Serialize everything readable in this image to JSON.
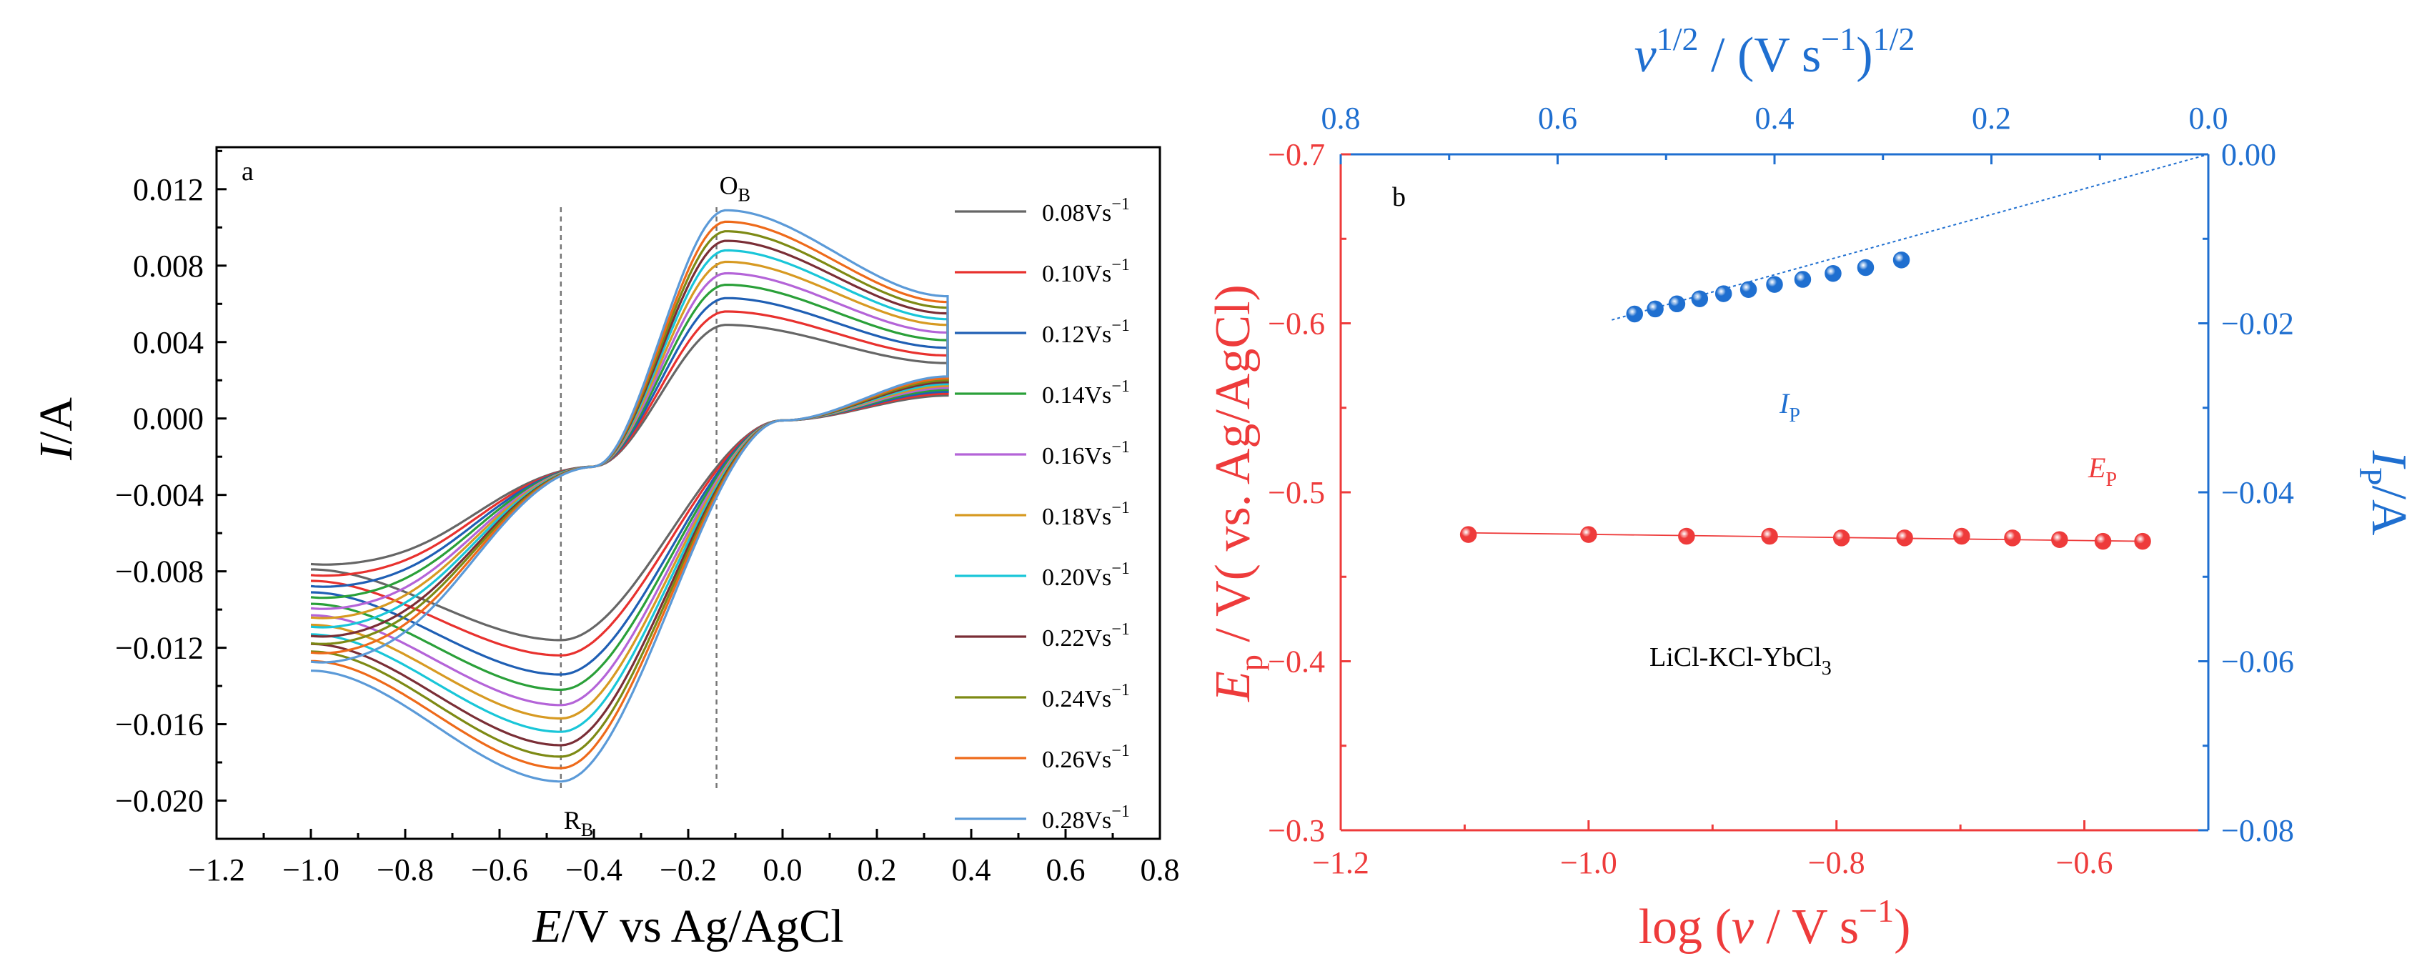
{
  "chart_data": [
    {
      "type": "line",
      "panel_label": "a",
      "xlabel_italic": "E",
      "xlabel_rest": "/V vs Ag/AgCl",
      "ylabel_italic": "I",
      "ylabel_rest": "/A",
      "xlim": [
        -1.2,
        0.8
      ],
      "ylim": [
        -0.022,
        0.0142
      ],
      "x_ticks": [
        -1.2,
        -1.0,
        -0.8,
        -0.6,
        -0.4,
        -0.2,
        0.0,
        0.2,
        0.4,
        0.6,
        0.8
      ],
      "x_tick_labels": [
        "−1.2",
        "−1.0",
        "−0.8",
        "−0.6",
        "−0.4",
        "−0.2",
        "0.0",
        "0.2",
        "0.4",
        "0.6",
        "0.8"
      ],
      "y_ticks": [
        0.012,
        0.008,
        0.004,
        0.0,
        -0.004,
        -0.008,
        -0.012,
        -0.016,
        -0.02
      ],
      "y_tick_labels": [
        "0.012",
        "0.008",
        "0.004",
        "0.000",
        "−0.004",
        "−0.008",
        "−0.012",
        "−0.016",
        "−0.020"
      ],
      "vlines": [
        -0.47,
        -0.14
      ],
      "annotations": [
        {
          "main": "O",
          "sub": "B",
          "x": -0.14,
          "y": 0.0125
        },
        {
          "main": "R",
          "sub": "B",
          "x": -0.47,
          "y": -0.0205
        }
      ],
      "cv_shape": {
        "e_start": -1.0,
        "e_switch": 0.35,
        "e_oxidation_peak": -0.12,
        "e_reduction_peak": -0.47,
        "e_crossover": -0.4
      },
      "series": [
        {
          "name": "0.08",
          "color": "#666666",
          "i_ox_peak": 0.0049,
          "i_red_peak": -0.0116,
          "i_start": -0.0079,
          "i_switch_upper": 0.0029,
          "i_switch_lower": 0.0012
        },
        {
          "name": "0.10",
          "color": "#e8312e",
          "i_ox_peak": 0.0056,
          "i_red_peak": -0.0124,
          "i_start": -0.0085,
          "i_switch_upper": 0.0033,
          "i_switch_lower": 0.0013
        },
        {
          "name": "0.12",
          "color": "#1f5fb4",
          "i_ox_peak": 0.0063,
          "i_red_peak": -0.0134,
          "i_start": -0.0091,
          "i_switch_upper": 0.0037,
          "i_switch_lower": 0.0014
        },
        {
          "name": "0.14",
          "color": "#2aa039",
          "i_ox_peak": 0.007,
          "i_red_peak": -0.0142,
          "i_start": -0.0097,
          "i_switch_upper": 0.0041,
          "i_switch_lower": 0.0015
        },
        {
          "name": "0.16",
          "color": "#b464d8",
          "i_ox_peak": 0.0076,
          "i_red_peak": -0.015,
          "i_start": -0.0103,
          "i_switch_upper": 0.0045,
          "i_switch_lower": 0.0016
        },
        {
          "name": "0.18",
          "color": "#d79a22",
          "i_ox_peak": 0.0082,
          "i_red_peak": -0.0157,
          "i_start": -0.0108,
          "i_switch_upper": 0.0049,
          "i_switch_lower": 0.0017
        },
        {
          "name": "0.20",
          "color": "#19c6d8",
          "i_ox_peak": 0.0088,
          "i_red_peak": -0.0164,
          "i_start": -0.0113,
          "i_switch_upper": 0.0052,
          "i_switch_lower": 0.0018
        },
        {
          "name": "0.22",
          "color": "#7a2e36",
          "i_ox_peak": 0.0093,
          "i_red_peak": -0.0171,
          "i_start": -0.0118,
          "i_switch_upper": 0.0055,
          "i_switch_lower": 0.0019
        },
        {
          "name": "0.24",
          "color": "#7d8a14",
          "i_ox_peak": 0.0098,
          "i_red_peak": -0.0177,
          "i_start": -0.0122,
          "i_switch_upper": 0.0058,
          "i_switch_lower": 0.002
        },
        {
          "name": "0.26",
          "color": "#ee6a1a",
          "i_ox_peak": 0.0103,
          "i_red_peak": -0.0183,
          "i_start": -0.0127,
          "i_switch_upper": 0.0061,
          "i_switch_lower": 0.0021
        },
        {
          "name": "0.28",
          "color": "#5b9ad8",
          "i_ox_peak": 0.0109,
          "i_red_peak": -0.019,
          "i_start": -0.0132,
          "i_switch_upper": 0.0064,
          "i_switch_lower": 0.0022
        }
      ],
      "legend_unit": "Vs",
      "legend_exponent": "−1",
      "legend_position": "right"
    },
    {
      "type": "scatter",
      "panel_label": "b",
      "electrolyte_label_main": "LiCl-KCl-YbCl",
      "electrolyte_label_sub": "3",
      "bottom_axis": {
        "label_main": "log (",
        "label_italic": "v",
        "label_rest": " / V s",
        "label_exponent": "−1",
        "label_close": ")",
        "color": "#ee3b3b",
        "lim": [
          -1.2,
          -0.5
        ],
        "ticks": [
          -1.2,
          -1.0,
          -0.8,
          -0.6
        ],
        "tick_labels": [
          "−1.2",
          "−1.0",
          "−0.8",
          "−0.6"
        ]
      },
      "left_axis": {
        "label_italic": "E",
        "label_sub": "p",
        "label_rest": " / V( vs. Ag/AgCl)",
        "color": "#ee3b3b",
        "lim": [
          -0.3,
          -0.7
        ],
        "ticks": [
          -0.7,
          -0.6,
          -0.5,
          -0.4,
          -0.3
        ],
        "tick_labels": [
          "−0.7",
          "−0.6",
          "−0.5",
          "−0.4",
          "−0.3"
        ]
      },
      "top_axis": {
        "label_italic": "v",
        "label_exponent": "1/2",
        "label_rest": " / (V s",
        "label_exponent2": "−1",
        "label_close": ")",
        "label_exponent3": "1/2",
        "color": "#1f6fd0",
        "lim": [
          0.8,
          0.0
        ],
        "ticks": [
          0.8,
          0.6,
          0.4,
          0.2,
          0.0
        ],
        "tick_labels": [
          "0.8",
          "0.6",
          "0.4",
          "0.2",
          "0.0"
        ]
      },
      "right_axis": {
        "label_italic": "I",
        "label_sub": "P",
        "label_rest": "/A",
        "color": "#1f6fd0",
        "lim": [
          0.0,
          -0.08
        ],
        "ticks": [
          0.0,
          -0.02,
          -0.04,
          -0.06,
          -0.08
        ],
        "tick_labels": [
          "0.00",
          "−0.02",
          "−0.04",
          "−0.06",
          "−0.08"
        ]
      },
      "series": [
        {
          "name": "Ep",
          "label_italic": "E",
          "label_sub": "P",
          "color": "#ee3b3b",
          "axes": "bottom-left",
          "x": [
            -1.097,
            -1.0,
            -0.921,
            -0.854,
            -0.796,
            -0.745,
            -0.699,
            -0.658,
            -0.62,
            -0.585,
            -0.553
          ],
          "y": [
            -0.475,
            -0.475,
            -0.474,
            -0.474,
            -0.473,
            -0.473,
            -0.474,
            -0.473,
            -0.472,
            -0.471,
            -0.471
          ],
          "fit": {
            "x": [
              -1.097,
              -0.553
            ],
            "y": [
              -0.476,
              -0.471
            ],
            "style": "solid"
          }
        },
        {
          "name": "Ip",
          "label_italic": "I",
          "label_sub": "P",
          "color": "#1f6fd0",
          "axes": "top-right",
          "x": [
            0.529,
            0.51,
            0.49,
            0.469,
            0.447,
            0.424,
            0.4,
            0.374,
            0.346,
            0.316,
            0.283
          ],
          "y": [
            -0.0189,
            -0.0183,
            -0.0177,
            -0.0171,
            -0.0165,
            -0.016,
            -0.0154,
            -0.0148,
            -0.0141,
            -0.0134,
            -0.0125
          ],
          "fit": {
            "x": [
              0.55,
              0.0
            ],
            "y": [
              -0.0196,
              0.0
            ],
            "style": "dotted"
          }
        }
      ]
    }
  ]
}
